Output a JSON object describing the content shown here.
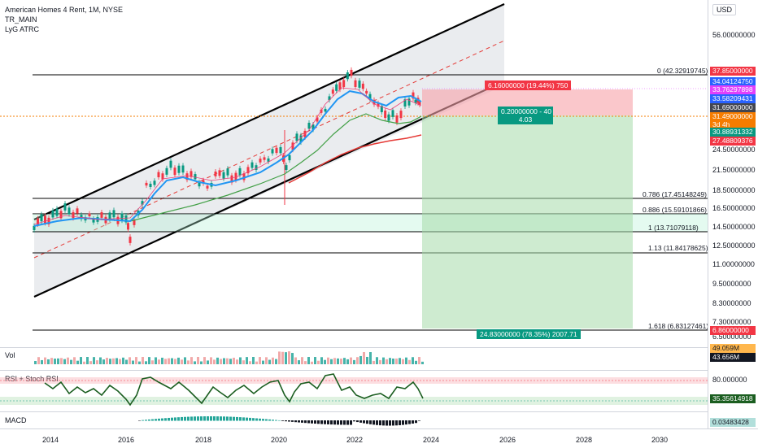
{
  "legend": {
    "title": "American Homes 4 Rent, 1M, NYSE",
    "line2": "TR_MAIN",
    "line3": "LyG ATRC"
  },
  "currency_button": "USD",
  "price_ticks": [
    {
      "label": "56.00000000"
    },
    {
      "label": "24.50000000"
    },
    {
      "label": "21.50000000"
    },
    {
      "label": "18.50000000"
    },
    {
      "label": "16.50000000"
    },
    {
      "label": "14.50000000"
    },
    {
      "label": "12.50000000"
    },
    {
      "label": "11.00000000"
    },
    {
      "label": "9.50000000"
    },
    {
      "label": "8.30000000"
    },
    {
      "label": "7.30000000"
    },
    {
      "label": "6.50000000"
    }
  ],
  "price_badges": [
    {
      "label": "37.85000000",
      "color": "#f23645"
    },
    {
      "label": "34.04124750",
      "color": "#2962ff"
    },
    {
      "label": "33.76297898",
      "color": "#e040fb"
    },
    {
      "label": "33.58209431",
      "color": "#2962ff"
    },
    {
      "label": "31.69000000",
      "color": "#434651"
    },
    {
      "label": "31.49000000",
      "color": "#f57c00"
    },
    {
      "label": "3d 4h",
      "color": "#f57c00"
    },
    {
      "label": "30.88931332",
      "color": "#089981"
    },
    {
      "label": "27.48809376",
      "color": "#f23645"
    },
    {
      "label": "6.86000000",
      "color": "#f23645"
    }
  ],
  "fib_levels": [
    {
      "label": "0 (42.32919745)"
    },
    {
      "label": "0.786 (17.45148249)"
    },
    {
      "label": "0.886 (15.59101866)"
    },
    {
      "label": "1 (13.71079118)"
    },
    {
      "label": "1.13 (11.84178625)"
    },
    {
      "label": "1.618 (6.83127461)"
    }
  ],
  "position": {
    "stop_label": "6.16000000 (19.44%) 750",
    "entry_label_1": "0.20000000 - 40",
    "entry_label_2": "4.03",
    "target_label": "24.83000000 (78.35%) 2007.71"
  },
  "panes": {
    "volume": {
      "label": "Vol",
      "badge_1": "49.059M",
      "badge_2": "43.656M"
    },
    "rsi": {
      "label": "RSI + Stoch RSI",
      "tick": "80.000000",
      "badge": "35.35614918"
    },
    "macd": {
      "label": "MACD",
      "badge": "0.03483428"
    }
  },
  "time_ticks": [
    "2014",
    "2016",
    "2018",
    "2020",
    "2022",
    "2024",
    "2026",
    "2028",
    "2030"
  ],
  "colors": {
    "up": "#089981",
    "down": "#f23645",
    "ma_blue": "#2196f3",
    "ma_green": "#43a047",
    "ma_red": "#e53935",
    "ma_pink": "#ec407a"
  }
}
